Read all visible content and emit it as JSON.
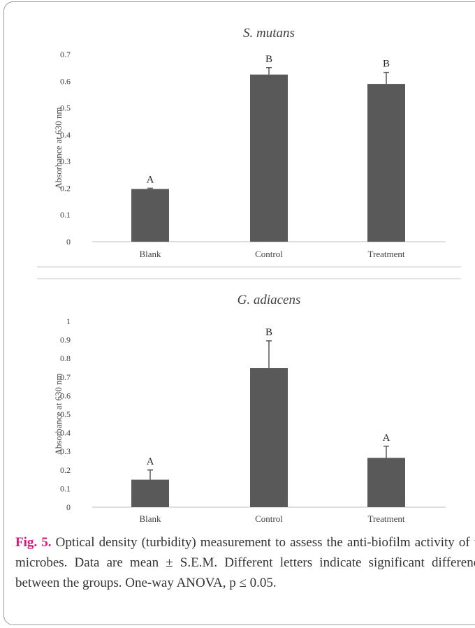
{
  "chart_data": [
    {
      "type": "bar",
      "title": "S. mutans",
      "ylabel": "Absorbance at 630 nm",
      "categories": [
        "Blank",
        "Control",
        "Treatment"
      ],
      "values": [
        0.197,
        0.625,
        0.59
      ],
      "errors": [
        0.003,
        0.026,
        0.043
      ],
      "group_letters": [
        "A",
        "B",
        "B"
      ],
      "ylim": [
        0,
        0.7
      ],
      "yticks": [
        "0",
        "0.1",
        "0.2",
        "0.3",
        "0.4",
        "0.5",
        "0.6",
        "0.7"
      ],
      "bar_color": "#595959",
      "grid": false
    },
    {
      "type": "bar",
      "title": "G. adiacens",
      "ylabel": "Absorbance at 630 nm",
      "categories": [
        "Blank",
        "Control",
        "Treatment"
      ],
      "values": [
        0.148,
        0.748,
        0.265
      ],
      "errors": [
        0.052,
        0.147,
        0.063
      ],
      "group_letters": [
        "A",
        "B",
        "A"
      ],
      "ylim": [
        0,
        1
      ],
      "yticks": [
        "0",
        "0.1",
        "0.2",
        "0.3",
        "0.4",
        "0.5",
        "0.6",
        "0.7",
        "0.8",
        "0.9",
        "1"
      ],
      "bar_color": "#595959",
      "grid": false
    }
  ],
  "caption": {
    "label": "Fig. 5.",
    "text": "Optical density (turbidity) measurement to assess the anti-biofilm activity of the microbes. Data are mean ± S.E.M. Different letters indicate significant differences between the groups. One-way ANOVA, p ≤ 0.05."
  }
}
